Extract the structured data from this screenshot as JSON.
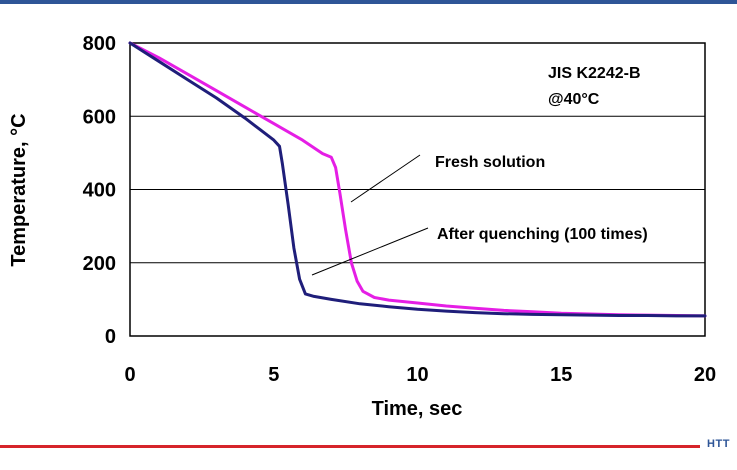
{
  "brand": {
    "logo_text": "HTT"
  },
  "chart_data": {
    "type": "line",
    "title": "",
    "xlabel": "Time, sec",
    "ylabel": "Temperature, °C",
    "xlim": [
      0,
      20
    ],
    "ylim": [
      0,
      800
    ],
    "x_ticks": [
      0,
      5,
      10,
      15,
      20
    ],
    "y_ticks": [
      0,
      200,
      400,
      600,
      800
    ],
    "grid": "horizontal",
    "annotations": [
      {
        "text": "JIS K2242-B"
      },
      {
        "text": "@40°C"
      },
      {
        "text": "Fresh solution",
        "points_to": "magenta-series"
      },
      {
        "text": "After quenching (100 times)",
        "points_to": "navy-series"
      }
    ],
    "series": [
      {
        "color": "#e51ee5",
        "x": [
          0,
          1,
          2,
          3,
          4,
          5,
          6,
          6.7,
          7.0,
          7.15,
          7.3,
          7.5,
          7.7,
          7.9,
          8.1,
          8.5,
          9,
          10,
          11,
          12,
          13,
          14,
          15,
          16,
          17,
          18,
          19,
          20
        ],
        "y": [
          800,
          760,
          715,
          670,
          625,
          580,
          535,
          498,
          488,
          460,
          390,
          290,
          200,
          150,
          122,
          105,
          98,
          90,
          82,
          76,
          70,
          66,
          62,
          60,
          58,
          57,
          56,
          55
        ]
      },
      {
        "color": "#1f1e7a",
        "x": [
          0,
          1,
          2,
          3,
          4,
          4.5,
          5,
          5.2,
          5.3,
          5.5,
          5.7,
          5.9,
          6.1,
          6.4,
          7,
          8,
          9,
          10,
          11,
          12,
          13,
          14,
          15,
          16,
          17,
          18,
          19,
          20
        ],
        "y": [
          800,
          750,
          700,
          650,
          595,
          565,
          535,
          518,
          470,
          360,
          240,
          155,
          115,
          108,
          100,
          88,
          80,
          73,
          68,
          64,
          61,
          59,
          58,
          57,
          56,
          56,
          55,
          55
        ]
      }
    ]
  }
}
